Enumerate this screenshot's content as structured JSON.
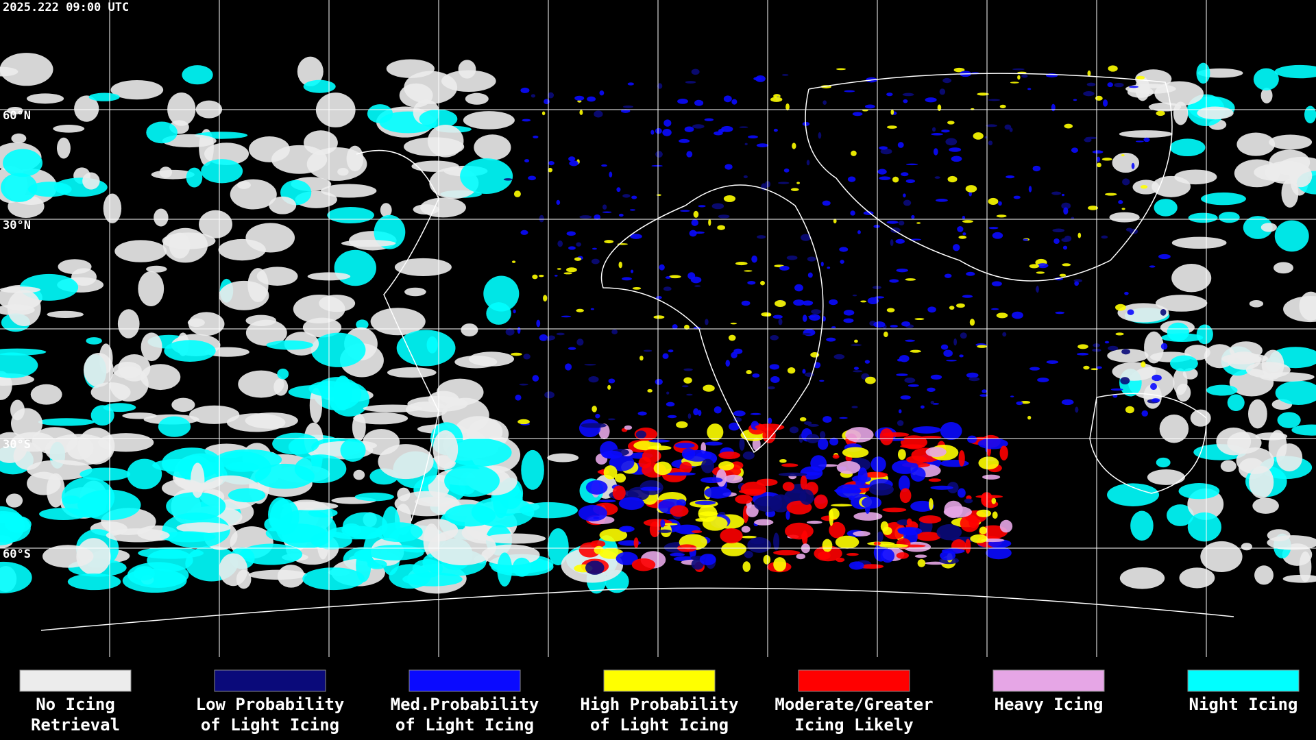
{
  "timestamp": "2025.222 09:00 UTC",
  "latitude_labels": [
    "60°N",
    "30°N",
    "30°S",
    "60°S"
  ],
  "legend": [
    {
      "lines": [
        "No Icing",
        "Retrieval"
      ],
      "color": "#ececec"
    },
    {
      "lines": [
        "Low Probability",
        "of Light Icing"
      ],
      "color": "#0a0a7a"
    },
    {
      "lines": [
        "Med.Probability",
        "of Light Icing"
      ],
      "color": "#0a0aff"
    },
    {
      "lines": [
        "High Probability",
        "of Light Icing"
      ],
      "color": "#ffff00"
    },
    {
      "lines": [
        "Moderate/Greater",
        "Icing Likely"
      ],
      "color": "#ff0000"
    },
    {
      "lines": [
        "Heavy Icing"
      ],
      "color": "#e6a6e6"
    },
    {
      "lines": [
        "Night Icing"
      ],
      "color": "#00ffff"
    }
  ]
}
